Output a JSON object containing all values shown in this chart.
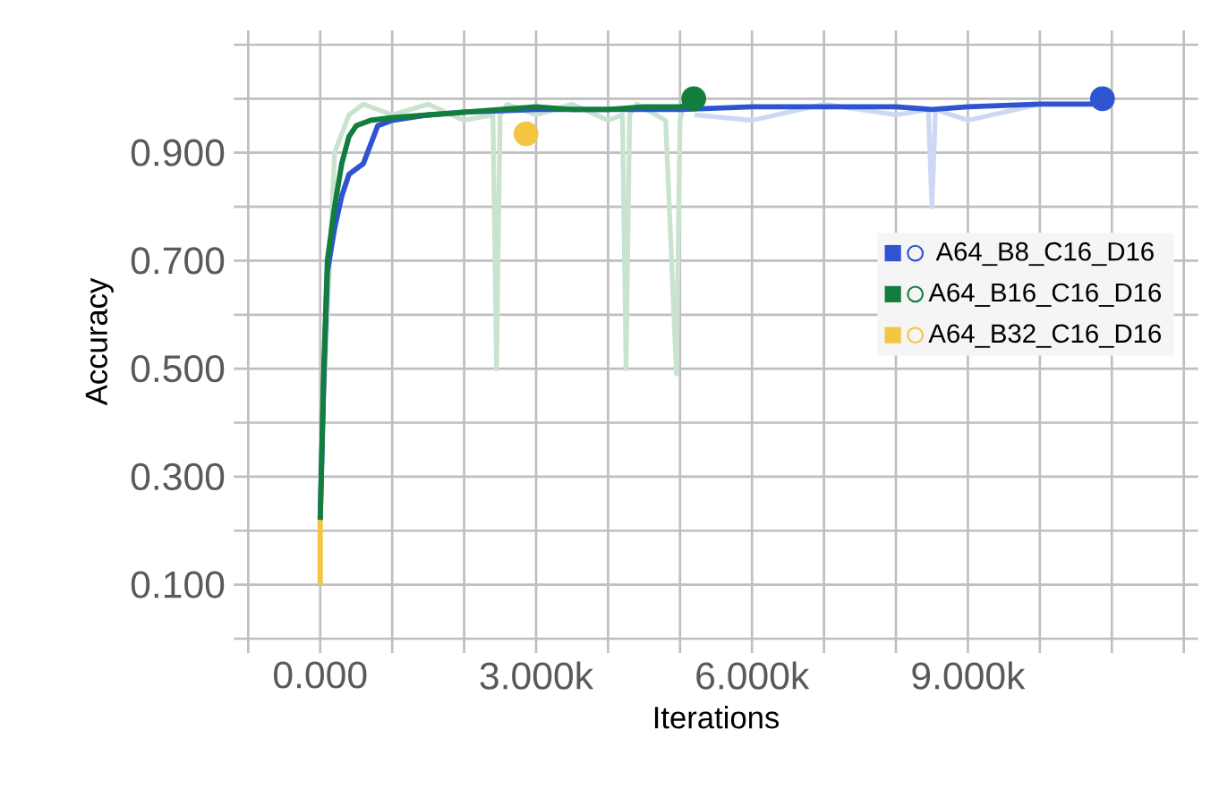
{
  "chart_data": {
    "type": "line",
    "xlabel": "Iterations",
    "ylabel": "Accuracy",
    "xlim": [
      -1000,
      12000
    ],
    "ylim": [
      0,
      1.1
    ],
    "xticks": [
      {
        "value": -1000,
        "label": null
      },
      {
        "value": 0,
        "label": "0.000"
      },
      {
        "value": 1000,
        "label": null
      },
      {
        "value": 2000,
        "label": null
      },
      {
        "value": 3000,
        "label": "3.000k"
      },
      {
        "value": 4000,
        "label": null
      },
      {
        "value": 5000,
        "label": null
      },
      {
        "value": 6000,
        "label": "6.000k"
      },
      {
        "value": 7000,
        "label": null
      },
      {
        "value": 8000,
        "label": null
      },
      {
        "value": 9000,
        "label": "9.000k"
      },
      {
        "value": 10000,
        "label": null
      },
      {
        "value": 11000,
        "label": null
      },
      {
        "value": 12000,
        "label": null
      }
    ],
    "yticks": [
      {
        "value": 0,
        "label": null
      },
      {
        "value": 0.1,
        "label": "0.100"
      },
      {
        "value": 0.2,
        "label": null
      },
      {
        "value": 0.3,
        "label": "0.300"
      },
      {
        "value": 0.4,
        "label": null
      },
      {
        "value": 0.5,
        "label": "0.500"
      },
      {
        "value": 0.6,
        "label": null
      },
      {
        "value": 0.7,
        "label": "0.700"
      },
      {
        "value": 0.8,
        "label": null
      },
      {
        "value": 0.9,
        "label": "0.900"
      },
      {
        "value": 1.0,
        "label": null
      },
      {
        "value": 1.1,
        "label": null
      }
    ],
    "grid": true,
    "legend": "right",
    "series": [
      {
        "color": "#c9e3d0",
        "x": [
          0,
          200,
          400,
          600,
          1000,
          1500,
          2000,
          2400,
          2450,
          2500,
          2600,
          3000,
          3500,
          4000,
          4200,
          4250,
          4300,
          4400,
          4800,
          4950,
          5000,
          5050,
          5200
        ],
        "values": [
          0.3,
          0.9,
          0.97,
          0.99,
          0.97,
          0.99,
          0.96,
          0.97,
          0.5,
          0.97,
          0.99,
          0.97,
          0.99,
          0.96,
          0.97,
          0.5,
          0.97,
          0.99,
          0.96,
          0.49,
          0.96,
          0.99,
          0.99
        ]
      },
      {
        "color": "#cdd8f5",
        "x": [
          5200,
          6000,
          7000,
          8000,
          8450,
          8500,
          8550,
          9000,
          10000,
          10870
        ],
        "values": [
          0.97,
          0.96,
          0.99,
          0.97,
          0.98,
          0.8,
          0.98,
          0.96,
          0.99,
          0.99
        ]
      },
      {
        "name": "A64_B8_C16_D16",
        "color": "#2f54d0",
        "x": [
          0,
          50,
          100,
          200,
          300,
          400,
          500,
          600,
          800,
          1000,
          1500,
          2000,
          3000,
          4000,
          5000,
          6000,
          7000,
          8000,
          8500,
          9000,
          10000,
          10870
        ],
        "values": [
          0.22,
          0.48,
          0.68,
          0.76,
          0.82,
          0.86,
          0.87,
          0.88,
          0.95,
          0.96,
          0.97,
          0.975,
          0.98,
          0.98,
          0.98,
          0.985,
          0.985,
          0.985,
          0.98,
          0.985,
          0.99,
          0.99
        ]
      },
      {
        "name": "A64_B16_C16_D16",
        "color": "#137d3e",
        "x": [
          0,
          50,
          100,
          200,
          300,
          400,
          500,
          700,
          1000,
          1500,
          2000,
          2500,
          3000,
          3500,
          4000,
          4500,
          5000,
          5190
        ],
        "values": [
          0.22,
          0.5,
          0.7,
          0.8,
          0.88,
          0.93,
          0.95,
          0.96,
          0.965,
          0.97,
          0.975,
          0.98,
          0.985,
          0.98,
          0.98,
          0.985,
          0.985,
          0.99
        ]
      },
      {
        "name": "A64_B32_C16_D16",
        "color": "#f4c542",
        "x": [
          0,
          0
        ],
        "values": [
          0.1,
          0.22
        ]
      },
      {
        "type": "scatter",
        "color": "#2f54d0",
        "x": [
          10870
        ],
        "values": [
          1.0
        ]
      },
      {
        "type": "scatter",
        "color": "#137d3e",
        "x": [
          5190
        ],
        "values": [
          1.0
        ]
      },
      {
        "type": "scatter",
        "color": "#f4c542",
        "x": [
          2860
        ],
        "values": [
          0.935
        ]
      }
    ]
  }
}
